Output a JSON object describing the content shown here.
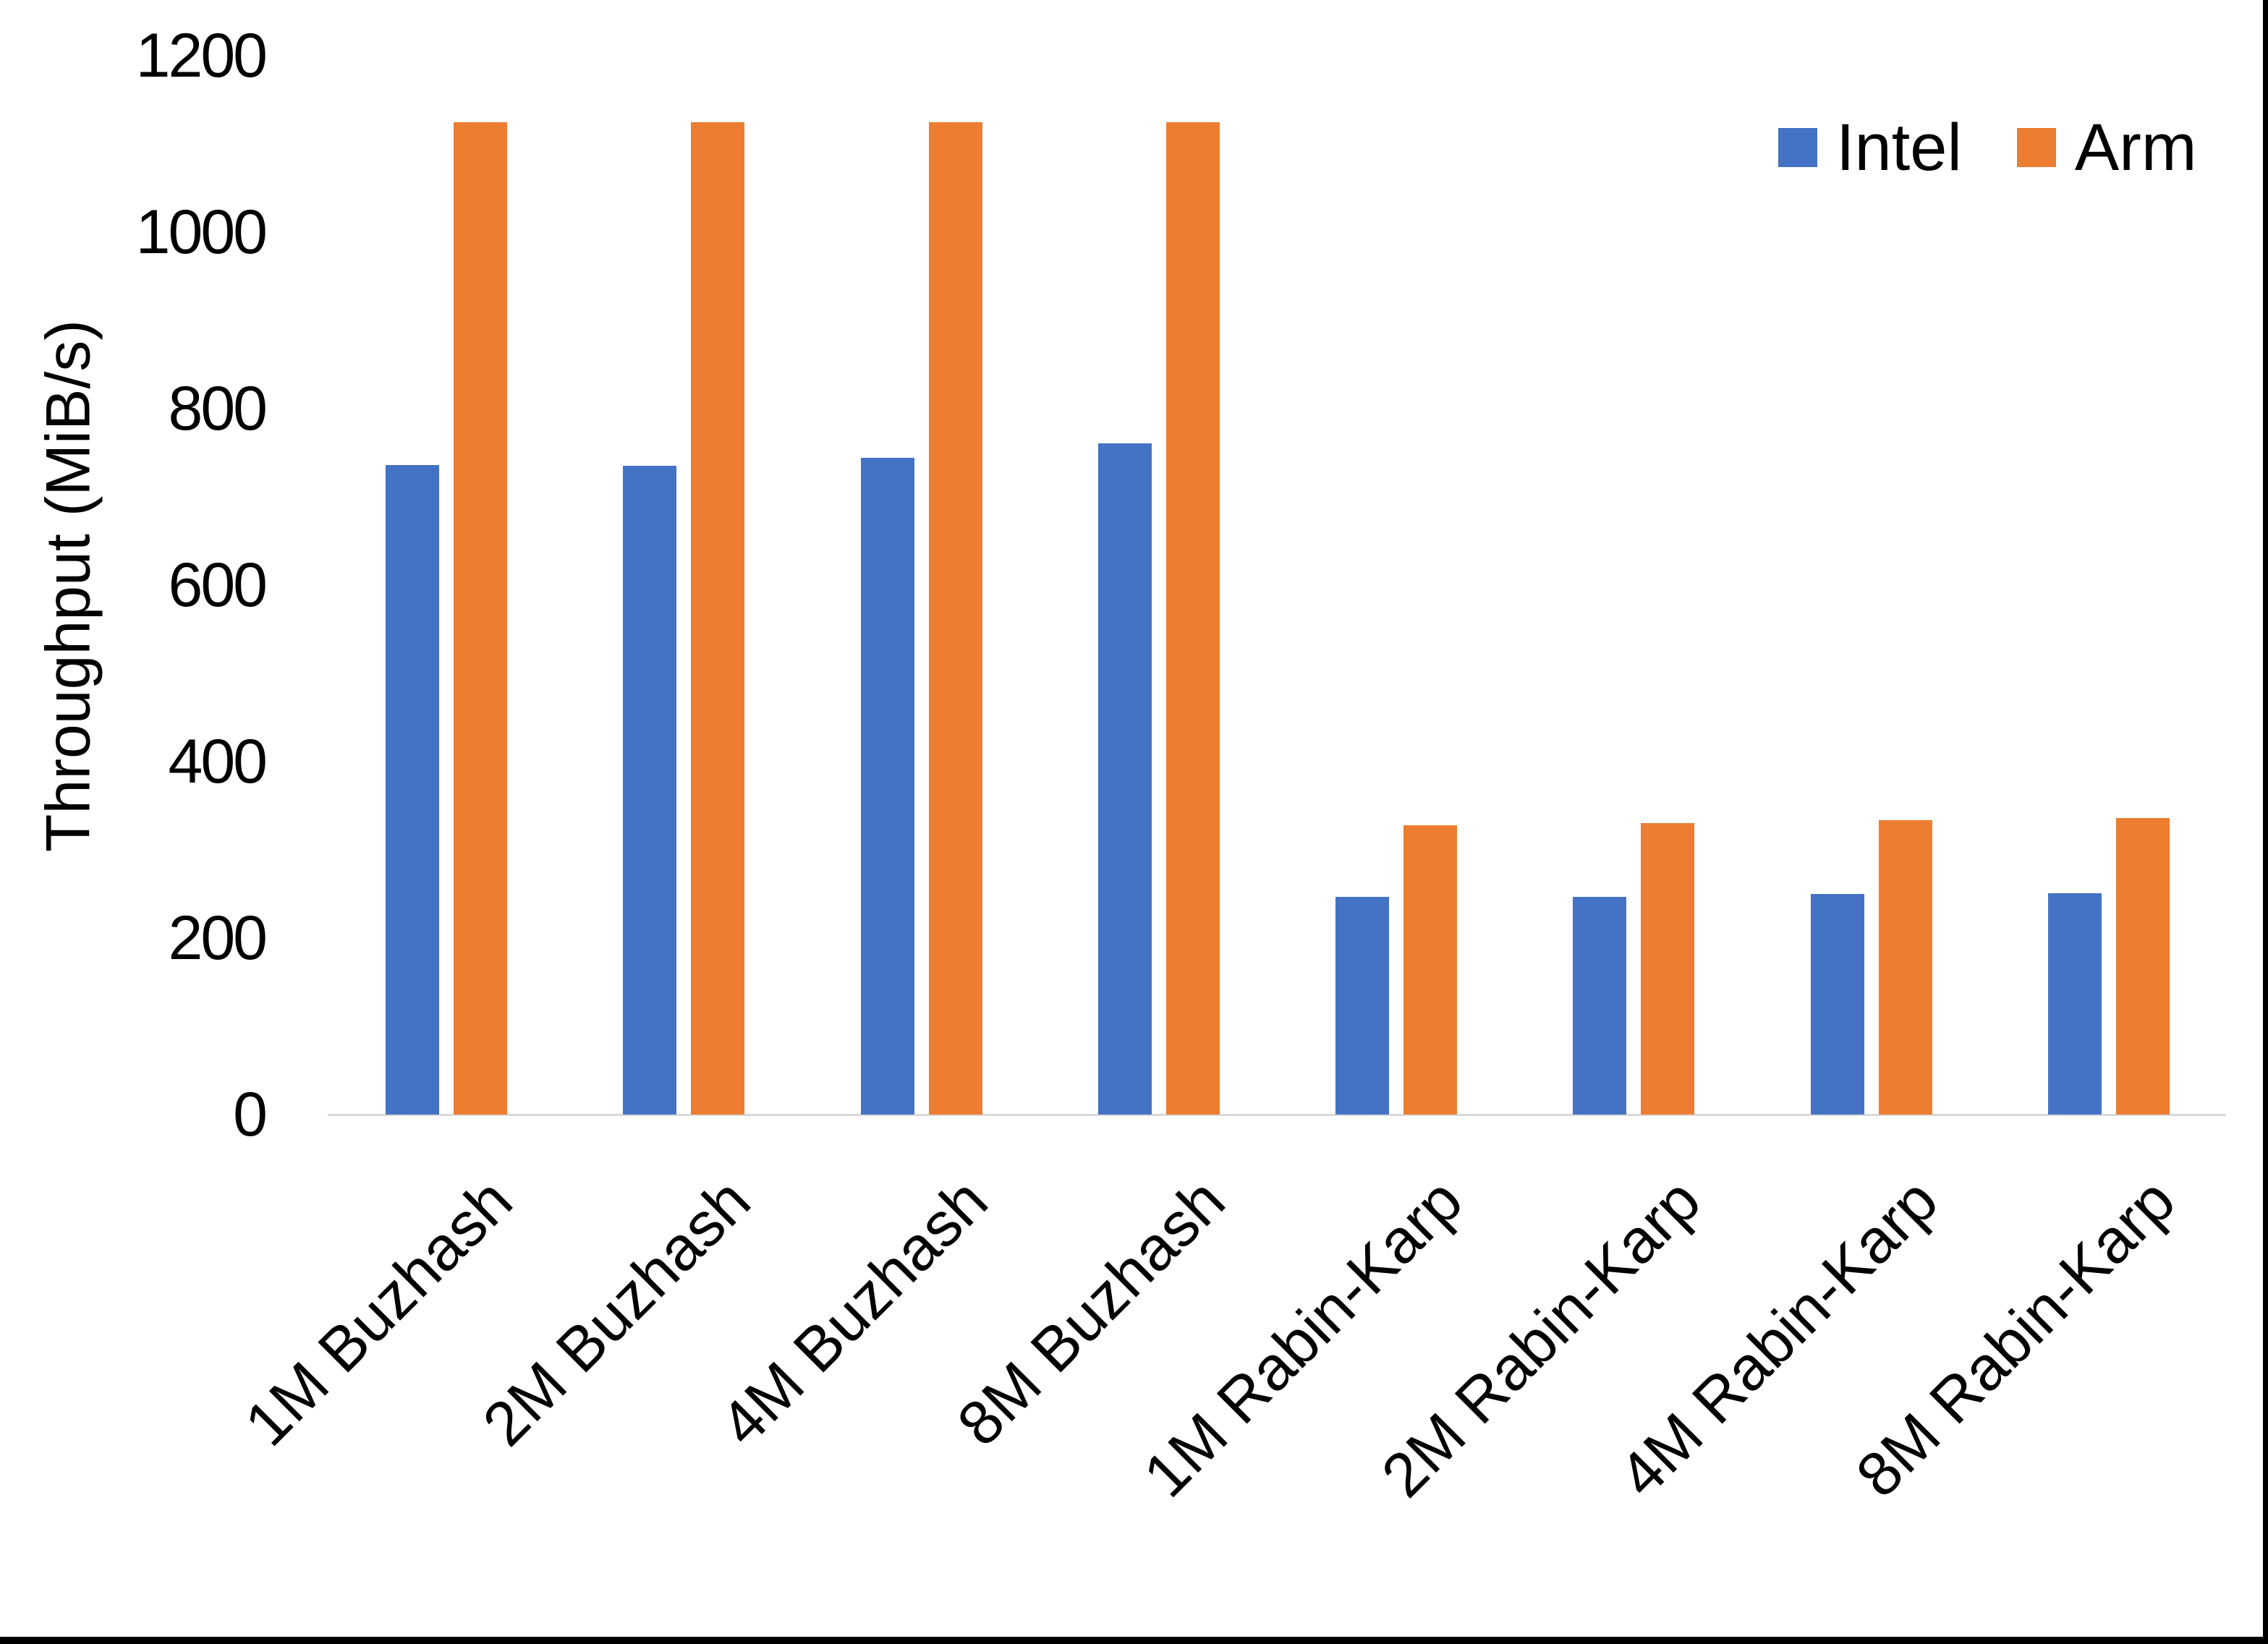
{
  "chart_data": {
    "type": "bar",
    "title": "",
    "xlabel": "",
    "ylabel": "Throughput (MiB/s)",
    "ylim": [
      0,
      1200
    ],
    "ytick_interval": 200,
    "yticks": [
      0,
      200,
      400,
      600,
      800,
      1000,
      1200
    ],
    "grid": false,
    "legend_position": "top-right",
    "categories": [
      "1M Buzhash",
      "2M Buzhash",
      "4M Buzhash",
      "8M Buzhash",
      "1M Rabin-Karp",
      "2M Rabin-Karp",
      "4M Rabin-Karp",
      "8M Rabin-Karp"
    ],
    "series": [
      {
        "name": "Intel",
        "color": "#4472C4",
        "values": [
          736,
          735,
          744,
          761,
          247,
          247,
          250,
          251
        ]
      },
      {
        "name": "Arm",
        "color": "#ED7D31",
        "values": [
          1125,
          1125,
          1125,
          1125,
          328,
          330,
          334,
          336
        ]
      }
    ]
  },
  "axis": {
    "line_color": "#D9D9D9",
    "text_color": "#000000"
  },
  "frame": {
    "bottom_bar_color": "#000000",
    "right_line_color": "#000000"
  }
}
